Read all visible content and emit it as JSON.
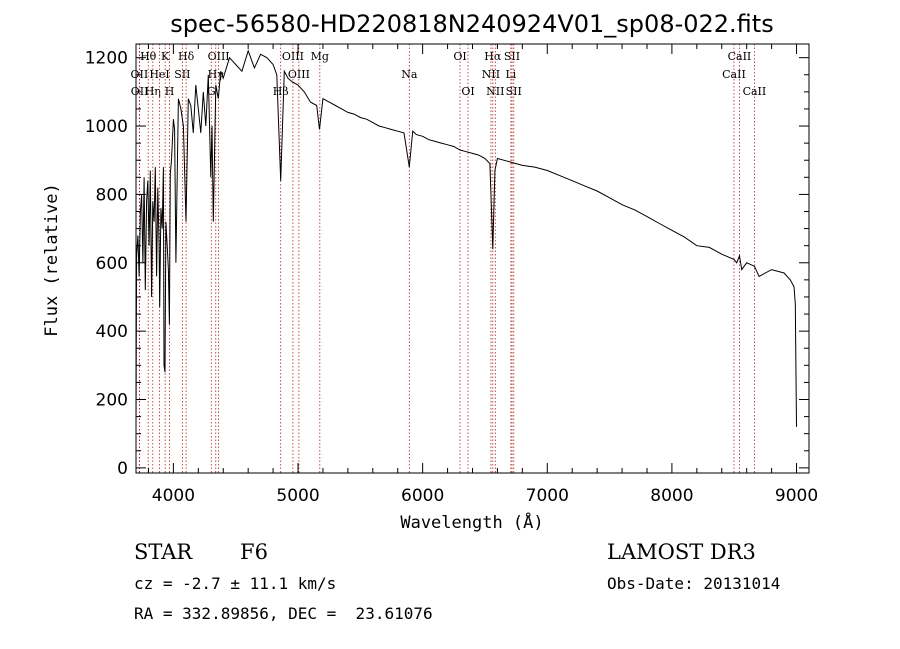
{
  "chart_data": {
    "type": "line",
    "title": "spec-56580-HD220818N240924V01_sp08-022.fits",
    "xlabel": "Wavelength (Å)",
    "ylabel": "Flux (relative)",
    "xlim": [
      3700,
      9100
    ],
    "ylim": [
      -15,
      1240
    ],
    "xticks": [
      4000,
      5000,
      6000,
      7000,
      8000,
      9000
    ],
    "yticks": [
      0,
      200,
      400,
      600,
      800,
      1000,
      1200
    ],
    "series": [
      {
        "name": "spectrum",
        "x": [
          3700,
          3705,
          3715,
          3725,
          3735,
          3745,
          3755,
          3765,
          3775,
          3785,
          3795,
          3805,
          3815,
          3825,
          3835,
          3845,
          3855,
          3865,
          3875,
          3885,
          3890,
          3900,
          3910,
          3920,
          3925,
          3933,
          3940,
          3950,
          3960,
          3968,
          3975,
          3985,
          4000,
          4010,
          4020,
          4040,
          4060,
          4080,
          4101,
          4120,
          4140,
          4160,
          4180,
          4200,
          4220,
          4240,
          4260,
          4280,
          4300,
          4310,
          4320,
          4340,
          4360,
          4380,
          4400,
          4450,
          4500,
          4550,
          4600,
          4650,
          4700,
          4750,
          4800,
          4830,
          4861,
          4890,
          4920,
          4950,
          5000,
          5050,
          5100,
          5150,
          5172,
          5200,
          5250,
          5300,
          5350,
          5400,
          5450,
          5500,
          5550,
          5600,
          5650,
          5700,
          5750,
          5800,
          5850,
          5893,
          5920,
          5950,
          6000,
          6050,
          6100,
          6150,
          6200,
          6250,
          6300,
          6350,
          6400,
          6450,
          6500,
          6540,
          6563,
          6580,
          6600,
          6650,
          6700,
          6750,
          6800,
          6900,
          7000,
          7100,
          7200,
          7300,
          7400,
          7500,
          7600,
          7700,
          7800,
          7900,
          8000,
          8100,
          8200,
          8300,
          8400,
          8498,
          8520,
          8542,
          8560,
          8600,
          8662,
          8700,
          8800,
          8900,
          8950,
          8980,
          8990,
          9000
        ],
        "values": [
          120,
          620,
          680,
          560,
          750,
          800,
          600,
          850,
          520,
          780,
          840,
          650,
          870,
          500,
          780,
          720,
          880,
          560,
          820,
          650,
          470,
          760,
          700,
          880,
          300,
          280,
          720,
          650,
          580,
          420,
          860,
          900,
          1020,
          990,
          600,
          1080,
          1050,
          1000,
          720,
          1080,
          1060,
          980,
          1120,
          1050,
          980,
          1100,
          1000,
          1150,
          850,
          1000,
          720,
          1120,
          1080,
          1160,
          1140,
          1200,
          1180,
          1160,
          1220,
          1170,
          1210,
          1200,
          1180,
          1150,
          840,
          1160,
          1140,
          1130,
          1120,
          1100,
          1070,
          1060,
          990,
          1080,
          1070,
          1060,
          1050,
          1040,
          1035,
          1025,
          1020,
          1010,
          1000,
          995,
          990,
          985,
          980,
          880,
          985,
          975,
          970,
          960,
          955,
          950,
          945,
          940,
          930,
          925,
          920,
          915,
          905,
          890,
          640,
          870,
          905,
          900,
          895,
          890,
          885,
          880,
          870,
          855,
          840,
          825,
          810,
          790,
          770,
          755,
          735,
          715,
          695,
          675,
          650,
          645,
          625,
          610,
          600,
          620,
          580,
          600,
          590,
          560,
          580,
          570,
          550,
          530,
          480,
          120
        ]
      }
    ],
    "line_markers": [
      {
        "label": "Hθ",
        "wavelength": 3798,
        "row": 0
      },
      {
        "label": "OII",
        "wavelength": 3727,
        "row": 1
      },
      {
        "label": "OII",
        "wavelength": 3729,
        "row": 2
      },
      {
        "label": "Hη",
        "wavelength": 3835,
        "row": 2
      },
      {
        "label": "HeI",
        "wavelength": 3889,
        "row": 1
      },
      {
        "label": "K",
        "wavelength": 3934,
        "row": 0
      },
      {
        "label": "H",
        "wavelength": 3969,
        "row": 2
      },
      {
        "label": "Hδ",
        "wavelength": 4102,
        "row": 0
      },
      {
        "label": "SII",
        "wavelength": 4072,
        "row": 1
      },
      {
        "label": "OIII",
        "wavelength": 4363,
        "row": 0
      },
      {
        "label": "Hγ",
        "wavelength": 4340,
        "row": 1
      },
      {
        "label": "G",
        "wavelength": 4304,
        "row": 2
      },
      {
        "label": "Hβ",
        "wavelength": 4861,
        "row": 2
      },
      {
        "label": "OIII",
        "wavelength": 4959,
        "row": 0
      },
      {
        "label": "OIII",
        "wavelength": 5007,
        "row": 1
      },
      {
        "label": "Mg",
        "wavelength": 5175,
        "row": 0
      },
      {
        "label": "Na",
        "wavelength": 5893,
        "row": 1
      },
      {
        "label": "OI",
        "wavelength": 6300,
        "row": 0
      },
      {
        "label": "OI",
        "wavelength": 6364,
        "row": 2
      },
      {
        "label": "Hα",
        "wavelength": 6563,
        "row": 0
      },
      {
        "label": "NII",
        "wavelength": 6548,
        "row": 1
      },
      {
        "label": "NII",
        "wavelength": 6583,
        "row": 2
      },
      {
        "label": "SII",
        "wavelength": 6717,
        "row": 0
      },
      {
        "label": "Li",
        "wavelength": 6708,
        "row": 1
      },
      {
        "label": "SII",
        "wavelength": 6731,
        "row": 2
      },
      {
        "label": "CaII",
        "wavelength": 8542,
        "row": 0
      },
      {
        "label": "CaII",
        "wavelength": 8498,
        "row": 1
      },
      {
        "label": "CaII",
        "wavelength": 8662,
        "row": 2
      }
    ]
  },
  "info": {
    "class_label": "STAR",
    "subclass": "F6",
    "survey": "LAMOST DR3",
    "cz": "cz = -2.7 ± 11.1 km/s",
    "obs_date": "Obs-Date: 20131014",
    "coords": "RA = 332.89856, DEC =  23.61076"
  },
  "colors": {
    "axis": "#000000",
    "spectrum": "#000000",
    "marker_line": "#b22222"
  }
}
